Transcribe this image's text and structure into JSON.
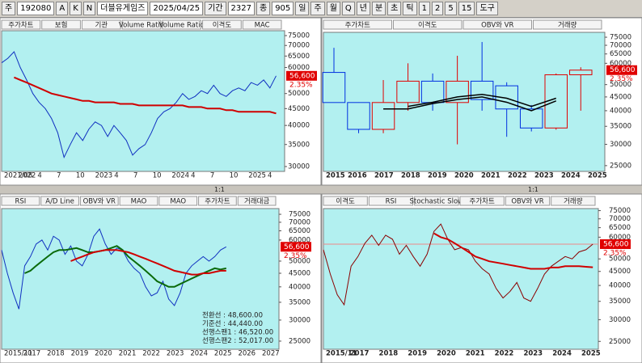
{
  "toolbar": {
    "market": "주",
    "code": "192080",
    "buttons": [
      "A",
      "K",
      "N"
    ],
    "name": "더블유게임즈",
    "date": "2025/04/25",
    "period_label": "기간",
    "period": "2327",
    "count_label": "종",
    "count": "905",
    "intervals": [
      "일",
      "주",
      "월",
      "Q",
      "년",
      "분",
      "초",
      "틱",
      "1",
      "2",
      "5",
      "15"
    ],
    "tools": "도구"
  },
  "panels": [
    {
      "tabs": [
        "주가차트",
        "보험",
        "기관",
        "Volume Ratio",
        "Volume Ratio",
        "이격도",
        "MAC"
      ],
      "log_scale": true,
      "ylim": [
        29000,
        77600
      ],
      "yticks": [
        75000,
        70000,
        65000,
        60000,
        50000,
        45000,
        40000,
        35000,
        30000
      ],
      "xlabels": [
        "2021/08",
        "2022",
        "4",
        "7",
        "10",
        "2023",
        "4",
        "7",
        "10",
        "2024",
        "4",
        "7",
        "10",
        "2025",
        "4"
      ],
      "price": {
        "value": 56600,
        "label": "56,600"
      },
      "change": "2.35%",
      "zoom": "1:1",
      "close": [
        62000,
        64000,
        67000,
        60000,
        55000,
        50000,
        47000,
        45000,
        42000,
        38000,
        32000,
        35000,
        38000,
        36000,
        39000,
        41000,
        40000,
        37000,
        40000,
        38000,
        36000,
        32500,
        34000,
        35000,
        38000,
        42000,
        44000,
        45000,
        47000,
        50000,
        48000,
        49000,
        51000,
        50000,
        53000,
        50000,
        49000,
        51000,
        52000,
        51000,
        54000,
        53000,
        55000,
        52000,
        56600
      ],
      "ma": [
        null,
        null,
        56000,
        55000,
        54000,
        53000,
        52000,
        51000,
        50000,
        49500,
        49000,
        48500,
        48000,
        47500,
        47500,
        47000,
        47000,
        47000,
        47000,
        46500,
        46500,
        46500,
        46000,
        46000,
        46000,
        46000,
        46000,
        46000,
        46000,
        46000,
        45500,
        45500,
        45500,
        45000,
        45000,
        45000,
        44500,
        44500,
        44000,
        44000,
        44000,
        44000,
        44000,
        44000,
        43500
      ]
    },
    {
      "tabs": [
        "주가차트",
        "이격도",
        "OBV와 VR",
        "거래량"
      ],
      "log_scale": true,
      "ylim": [
        23800,
        78200
      ],
      "yticks": [
        75000,
        70000,
        65000,
        60000,
        50000,
        45000,
        40000,
        35000,
        30000,
        25000
      ],
      "xlabels": [
        "2015",
        "2016",
        "2017",
        "2018",
        "2019",
        "2020",
        "2021",
        "2022",
        "2023",
        "2024",
        "2025"
      ],
      "price": {
        "value": 56600,
        "label": "56,600"
      },
      "change": "2.35%",
      "zoom": "1:1",
      "candles": [
        {
          "o": 55500,
          "h": 68500,
          "l": 42900,
          "c": 42900
        },
        {
          "o": 42900,
          "h": 43000,
          "l": 33000,
          "c": 34100
        },
        {
          "o": 34100,
          "h": 52000,
          "l": 33000,
          "c": 42900
        },
        {
          "o": 42900,
          "h": 60000,
          "l": 40000,
          "c": 51500
        },
        {
          "o": 51500,
          "h": 55000,
          "l": 40000,
          "c": 42900
        },
        {
          "o": 42900,
          "h": 64000,
          "l": 30000,
          "c": 51500
        },
        {
          "o": 51500,
          "h": 72000,
          "l": 40000,
          "c": 44000
        },
        {
          "o": 49500,
          "h": 51000,
          "l": 32000,
          "c": 40600
        },
        {
          "o": 40600,
          "h": 42000,
          "l": 33500,
          "c": 34500
        },
        {
          "o": 34500,
          "h": 55000,
          "l": 34000,
          "c": 54400
        },
        {
          "o": 54400,
          "h": 58000,
          "l": 40000,
          "c": 56600
        }
      ],
      "ma": [
        null,
        null,
        40600,
        40600,
        42500,
        44000,
        45000,
        43000,
        40000,
        43500,
        null
      ],
      "ma2": [
        null,
        null,
        null,
        41500,
        43000,
        45000,
        46000,
        44500,
        41500,
        44500,
        null
      ]
    },
    {
      "tabs": [
        "RSI",
        "A/D Line",
        "OBV와 VR",
        "MAO",
        "MAO",
        "주가차트",
        "거래대금"
      ],
      "log_scale": true,
      "ylim": [
        23300,
        78800
      ],
      "yticks": [
        75000,
        70000,
        65000,
        60000,
        50000,
        45000,
        40000,
        35000,
        30000,
        25000
      ],
      "xlabels": [
        "2015/11",
        "2017",
        "2018",
        "2019",
        "2020",
        "2021",
        "2022",
        "2023",
        "2024",
        "2025",
        "2026",
        "2027"
      ],
      "price": {
        "value": 56600,
        "label": "56,600"
      },
      "change": "2.35%",
      "ichimoku": [
        "전환선 : 48,600.00",
        "기준선 : 44,440.00",
        "선행스팬1 : 46,520.00",
        "선행스팬2 : 52,017.00"
      ],
      "close": [
        55000,
        45000,
        38000,
        33000,
        48000,
        52000,
        58000,
        60000,
        55000,
        62000,
        60000,
        53000,
        57000,
        50000,
        48000,
        53000,
        62000,
        66000,
        58000,
        53000,
        56000,
        55000,
        50000,
        47000,
        45000,
        40000,
        37000,
        38000,
        42000,
        36000,
        34000,
        38000,
        45000,
        48000,
        50000,
        52000,
        50000,
        52000,
        55000,
        56600
      ],
      "ma": [
        null,
        null,
        null,
        null,
        45000,
        46000,
        48000,
        50000,
        52000,
        54000,
        55000,
        55000,
        55500,
        56000,
        55000,
        54000,
        54000,
        54500,
        55000,
        56000,
        57000,
        55000,
        52000,
        50000,
        48000,
        46000,
        44000,
        42000,
        41000,
        40000,
        40000,
        41000,
        42000,
        43000,
        44000,
        45000,
        46000,
        47000,
        46500,
        47000
      ],
      "ma2": [
        null,
        null,
        null,
        null,
        null,
        null,
        null,
        null,
        null,
        null,
        null,
        null,
        50000,
        51000,
        52000,
        53000,
        54000,
        54500,
        55000,
        55000,
        55000,
        54500,
        54000,
        53000,
        52000,
        51000,
        50000,
        49000,
        48000,
        47000,
        46000,
        45500,
        45000,
        44500,
        44500,
        45000,
        45000,
        45500,
        46000,
        46000
      ]
    },
    {
      "tabs": [
        "이격도",
        "RSI",
        "Stochastic Slow",
        "주가차트",
        "OBV와 VR",
        "거래량"
      ],
      "log_scale": true,
      "ylim": [
        23400,
        76300
      ],
      "yticks": [
        75000,
        70000,
        65000,
        60000,
        50000,
        45000,
        40000,
        35000,
        30000,
        25000
      ],
      "xlabels": [
        "2015/11",
        "2017",
        "2018",
        "2019",
        "2020",
        "2021",
        "2022",
        "2023",
        "2024",
        "2025"
      ],
      "price": {
        "value": 56600,
        "label": "56,600"
      },
      "change": "2.35%",
      "close": [
        54000,
        44000,
        37000,
        34000,
        47000,
        51000,
        57000,
        61000,
        56000,
        61000,
        59000,
        52000,
        56000,
        51000,
        47000,
        52000,
        63000,
        67000,
        59000,
        54000,
        55000,
        54000,
        49000,
        46000,
        44000,
        39000,
        36000,
        38000,
        41000,
        36000,
        35000,
        39000,
        44000,
        47000,
        49000,
        51000,
        50000,
        53000,
        54000,
        56600
      ],
      "ma": [
        null,
        null,
        null,
        null,
        null,
        null,
        null,
        null,
        null,
        null,
        null,
        null,
        null,
        null,
        null,
        null,
        62000,
        60000,
        59000,
        57000,
        55000,
        53000,
        51000,
        50000,
        49000,
        48500,
        48000,
        47500,
        47000,
        46500,
        46000,
        46000,
        46000,
        46500,
        46500,
        47000,
        47000,
        47000,
        46800,
        46600
      ]
    }
  ]
}
